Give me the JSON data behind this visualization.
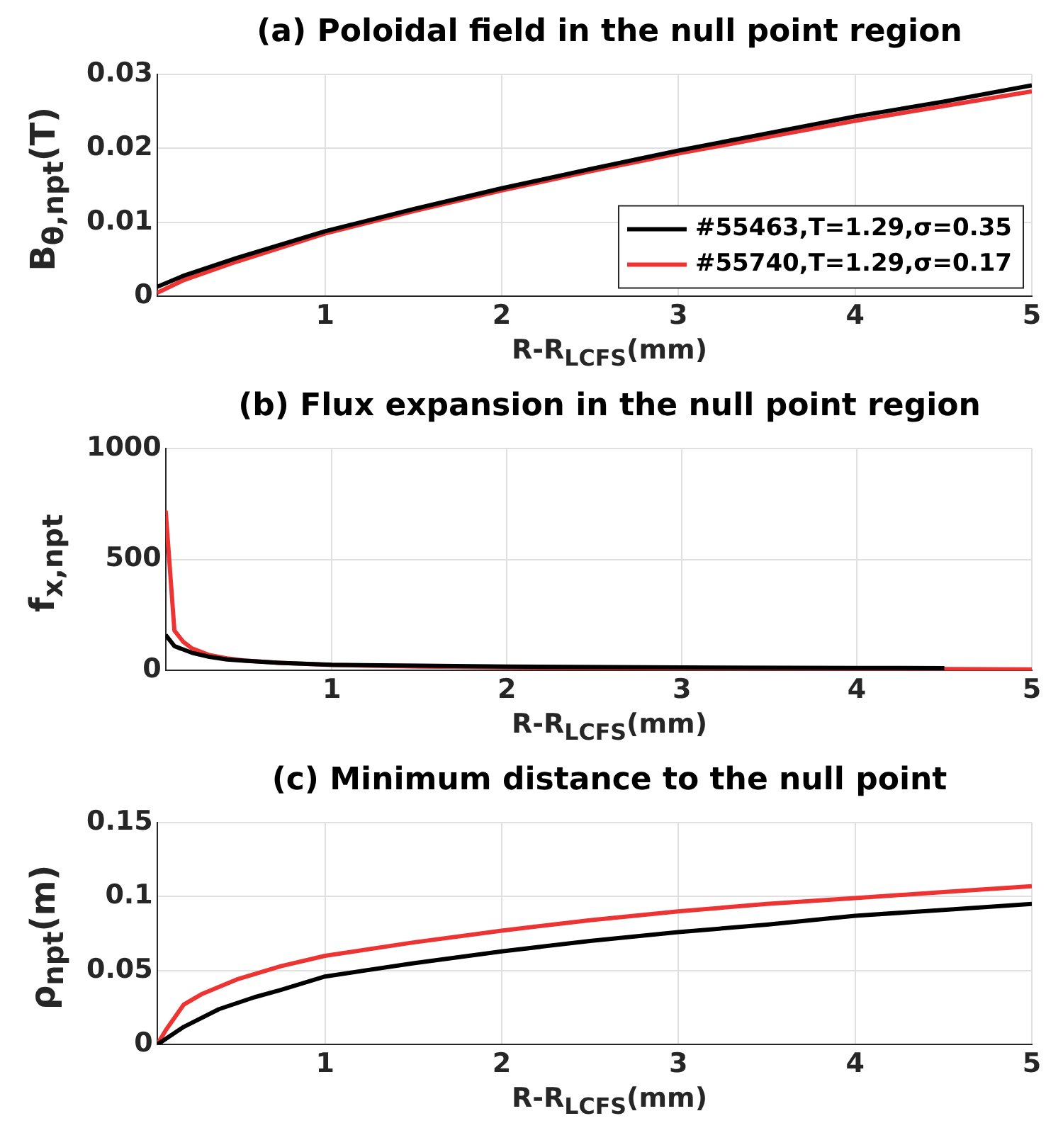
{
  "chart_data": [
    {
      "type": "line",
      "title": "(a) Poloidal field in the null point region",
      "xlabel": "R-R$_{LCFS}$(mm)",
      "ylabel": "B$_{θ,npt}$(T)",
      "xlim": [
        0.05,
        5
      ],
      "xticks": [
        1,
        2,
        3,
        4,
        5
      ],
      "ylim": [
        0,
        0.03
      ],
      "yticks": [
        0,
        0.01,
        0.02,
        0.03
      ],
      "grid": true,
      "legend": "bottom right",
      "series": [
        {
          "name": "#55463,T=1.29,σ=0.35",
          "color": "#000000",
          "x": [
            0.05,
            0.2,
            0.5,
            1,
            1.5,
            2,
            2.5,
            3,
            3.5,
            4,
            4.5,
            5
          ],
          "values": [
            0.0013,
            0.0028,
            0.0052,
            0.0088,
            0.0118,
            0.0146,
            0.0172,
            0.0197,
            0.022,
            0.0243,
            0.0263,
            0.0285
          ]
        },
        {
          "name": "#55740,T=1.29,σ=0.17",
          "color": "#ee3333",
          "x": [
            0.05,
            0.2,
            0.5,
            1,
            1.5,
            2,
            2.5,
            3,
            3.5,
            4,
            4.5,
            5
          ],
          "values": [
            0.0005,
            0.0022,
            0.0047,
            0.0085,
            0.0115,
            0.0143,
            0.0169,
            0.0193,
            0.0215,
            0.0237,
            0.0257,
            0.0277
          ]
        }
      ]
    },
    {
      "type": "line",
      "title": "(b) Flux expansion in the null point region",
      "xlabel": "R-R$_{LCFS}$(mm)",
      "ylabel": "f$_{x,npt}$",
      "xlim": [
        0.05,
        5
      ],
      "xticks": [
        1,
        2,
        3,
        4,
        5
      ],
      "ylim": [
        0,
        1000
      ],
      "yticks": [
        0,
        500,
        1000
      ],
      "grid": true,
      "series": [
        {
          "color": "#000000",
          "x": [
            0.05,
            0.1,
            0.2,
            0.3,
            0.4,
            0.5,
            0.7,
            1,
            1.5,
            2,
            3,
            4,
            4.5
          ],
          "values": [
            160,
            110,
            80,
            62,
            50,
            44,
            35,
            26,
            22,
            18,
            14,
            12,
            11
          ]
        },
        {
          "color": "#ee3333",
          "x": [
            0.05,
            0.1,
            0.15,
            0.2,
            0.3,
            0.4,
            0.5,
            0.7,
            1,
            1.5,
            2,
            3,
            4,
            5
          ],
          "values": [
            720,
            180,
            130,
            100,
            70,
            55,
            45,
            35,
            25,
            18,
            15,
            10,
            8,
            5
          ]
        }
      ]
    },
    {
      "type": "line",
      "title": "(c) Minimum distance to the null point",
      "xlabel": "R-R$_{LCFS}$(mm)",
      "ylabel": "ρ$_{npt}$(m)",
      "xlim": [
        0.05,
        5
      ],
      "xticks": [
        1,
        2,
        3,
        4,
        5
      ],
      "ylim": [
        0,
        0.15
      ],
      "yticks": [
        0,
        0.05,
        0.1,
        0.15
      ],
      "grid": true,
      "series": [
        {
          "color": "#000000",
          "x": [
            0.05,
            0.2,
            0.4,
            0.6,
            0.75,
            1,
            1.5,
            2,
            2.5,
            3,
            3.5,
            4,
            4.5,
            5
          ],
          "values": [
            0,
            0.012,
            0.024,
            0.032,
            0.037,
            0.046,
            0.055,
            0.063,
            0.07,
            0.076,
            0.081,
            0.087,
            0.091,
            0.095
          ]
        },
        {
          "color": "#ee3333",
          "x": [
            0.05,
            0.1,
            0.2,
            0.3,
            0.5,
            0.75,
            1,
            1.5,
            2,
            2.5,
            3,
            3.5,
            4,
            4.5,
            5
          ],
          "values": [
            0,
            0.01,
            0.027,
            0.034,
            0.044,
            0.053,
            0.06,
            0.069,
            0.077,
            0.084,
            0.09,
            0.095,
            0.099,
            0.103,
            0.107
          ]
        }
      ]
    }
  ]
}
